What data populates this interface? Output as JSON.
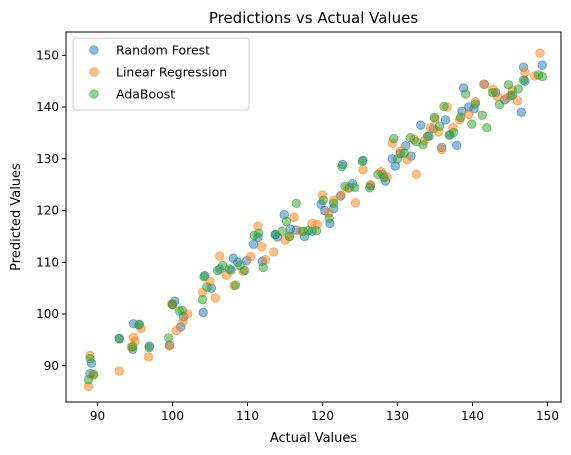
{
  "chart_data": {
    "type": "scatter",
    "title": "Predictions vs Actual Values",
    "xlabel": "Actual Values",
    "ylabel": "Predicted Values",
    "xlim": [
      85.8,
      151.8
    ],
    "ylim": [
      83.0,
      154.5
    ],
    "xticks": [
      90,
      100,
      110,
      120,
      130,
      140,
      150
    ],
    "yticks": [
      90,
      100,
      110,
      120,
      130,
      140,
      150
    ],
    "grid": false,
    "legend_position": "top-left",
    "series": [
      {
        "name": "Random Forest",
        "color": "#1f77b4",
        "points": [
          [
            89.0,
            88.5
          ],
          [
            89.2,
            90.5
          ],
          [
            92.9,
            95.3
          ],
          [
            94.7,
            93.2
          ],
          [
            94.8,
            98.1
          ],
          [
            95.6,
            98.0
          ],
          [
            96.9,
            93.8
          ],
          [
            99.6,
            94.0
          ],
          [
            100.0,
            101.9
          ],
          [
            100.3,
            102.5
          ],
          [
            101.1,
            97.5
          ],
          [
            101.5,
            99.5
          ],
          [
            104.1,
            100.3
          ],
          [
            104.3,
            107.4
          ],
          [
            105.2,
            105.0
          ],
          [
            106.3,
            108.7
          ],
          [
            107.8,
            108.5
          ],
          [
            108.1,
            110.8
          ],
          [
            108.7,
            110.0
          ],
          [
            109.9,
            110.3
          ],
          [
            110.8,
            113.5
          ],
          [
            111.4,
            114.8
          ],
          [
            112.0,
            110.2
          ],
          [
            113.7,
            115.3
          ],
          [
            114.0,
            114.9
          ],
          [
            114.9,
            119.2
          ],
          [
            115.7,
            116.4
          ],
          [
            116.5,
            116.2
          ],
          [
            117.6,
            115.0
          ],
          [
            118.6,
            116.0
          ],
          [
            119.8,
            121.2
          ],
          [
            120.3,
            120.0
          ],
          [
            121.0,
            117.5
          ],
          [
            121.5,
            120.4
          ],
          [
            122.4,
            122.8
          ],
          [
            122.7,
            128.9
          ],
          [
            123.6,
            124.4
          ],
          [
            124.0,
            125.2
          ],
          [
            125.4,
            129.7
          ],
          [
            126.4,
            124.8
          ],
          [
            128.0,
            127.0
          ],
          [
            128.4,
            125.7
          ],
          [
            129.3,
            130.0
          ],
          [
            129.7,
            128.6
          ],
          [
            130.4,
            131.0
          ],
          [
            131.1,
            132.5
          ],
          [
            131.8,
            130.5
          ],
          [
            133.1,
            136.5
          ],
          [
            134.0,
            134.3
          ],
          [
            134.8,
            135.8
          ],
          [
            135.9,
            132.2
          ],
          [
            136.4,
            137.5
          ],
          [
            137.0,
            134.6
          ],
          [
            137.9,
            132.6
          ],
          [
            138.6,
            139.2
          ],
          [
            138.8,
            143.7
          ],
          [
            139.5,
            140.0
          ],
          [
            140.2,
            139.7
          ],
          [
            141.6,
            144.4
          ],
          [
            143.1,
            142.8
          ],
          [
            144.3,
            141.4
          ],
          [
            145.1,
            142.2
          ],
          [
            146.5,
            139.0
          ],
          [
            146.8,
            147.7
          ],
          [
            147.0,
            145.0
          ],
          [
            149.3,
            148.1
          ]
        ]
      },
      {
        "name": "Linear Regression",
        "color": "#ff7f0e",
        "points": [
          [
            88.8,
            86.0
          ],
          [
            89.0,
            92.0
          ],
          [
            89.4,
            88.2
          ],
          [
            92.9,
            89.0
          ],
          [
            94.5,
            93.6
          ],
          [
            94.8,
            95.5
          ],
          [
            95.0,
            94.7
          ],
          [
            95.8,
            97.2
          ],
          [
            96.8,
            91.7
          ],
          [
            99.6,
            93.8
          ],
          [
            99.9,
            102.0
          ],
          [
            100.5,
            96.8
          ],
          [
            101.4,
            98.5
          ],
          [
            102.0,
            100.0
          ],
          [
            104.0,
            104.2
          ],
          [
            105.0,
            106.3
          ],
          [
            105.7,
            103.1
          ],
          [
            106.3,
            111.2
          ],
          [
            107.2,
            107.5
          ],
          [
            108.2,
            105.5
          ],
          [
            109.4,
            108.3
          ],
          [
            110.4,
            111.1
          ],
          [
            111.4,
            117.0
          ],
          [
            111.9,
            113.0
          ],
          [
            112.4,
            110.5
          ],
          [
            113.5,
            112.0
          ],
          [
            115.0,
            114.3
          ],
          [
            115.6,
            115.0
          ],
          [
            116.2,
            118.7
          ],
          [
            117.1,
            116.0
          ],
          [
            118.6,
            117.5
          ],
          [
            119.3,
            117.3
          ],
          [
            120.0,
            123.0
          ],
          [
            120.8,
            119.5
          ],
          [
            121.5,
            122.0
          ],
          [
            122.5,
            123.0
          ],
          [
            123.4,
            124.3
          ],
          [
            124.4,
            121.5
          ],
          [
            125.4,
            127.9
          ],
          [
            126.4,
            125.0
          ],
          [
            127.8,
            127.5
          ],
          [
            128.6,
            126.5
          ],
          [
            129.3,
            133.0
          ],
          [
            130.4,
            131.5
          ],
          [
            131.3,
            129.8
          ],
          [
            132.2,
            133.8
          ],
          [
            132.5,
            127.0
          ],
          [
            133.6,
            133.5
          ],
          [
            134.4,
            136.0
          ],
          [
            135.0,
            137.7
          ],
          [
            135.5,
            135.2
          ],
          [
            135.9,
            131.8
          ],
          [
            136.6,
            140.0
          ],
          [
            137.4,
            136.0
          ],
          [
            138.3,
            137.5
          ],
          [
            139.5,
            138.6
          ],
          [
            140.4,
            141.0
          ],
          [
            141.5,
            144.4
          ],
          [
            142.7,
            143.4
          ],
          [
            143.3,
            142.0
          ],
          [
            144.6,
            141.8
          ],
          [
            145.3,
            143.2
          ],
          [
            146.0,
            141.2
          ],
          [
            147.0,
            146.7
          ],
          [
            148.3,
            146.0
          ],
          [
            149.0,
            150.4
          ]
        ]
      },
      {
        "name": "AdaBoost",
        "color": "#2ca02c",
        "points": [
          [
            88.8,
            87.3
          ],
          [
            89.0,
            91.4
          ],
          [
            89.5,
            88.3
          ],
          [
            92.9,
            95.2
          ],
          [
            94.7,
            93.7
          ],
          [
            95.5,
            97.9
          ],
          [
            96.9,
            93.5
          ],
          [
            99.5,
            95.4
          ],
          [
            100.0,
            101.8
          ],
          [
            100.9,
            100.6
          ],
          [
            101.3,
            100.7
          ],
          [
            104.0,
            102.8
          ],
          [
            104.2,
            107.2
          ],
          [
            104.6,
            105.2
          ],
          [
            106.0,
            108.4
          ],
          [
            106.7,
            109.4
          ],
          [
            107.6,
            108.7
          ],
          [
            108.4,
            105.6
          ],
          [
            109.0,
            109.4
          ],
          [
            109.6,
            108.4
          ],
          [
            110.9,
            115.2
          ],
          [
            111.5,
            115.6
          ],
          [
            112.1,
            109.0
          ],
          [
            113.7,
            115.4
          ],
          [
            114.6,
            116.0
          ],
          [
            115.2,
            117.9
          ],
          [
            115.6,
            115.0
          ],
          [
            116.5,
            121.4
          ],
          [
            117.4,
            116.0
          ],
          [
            118.1,
            116.1
          ],
          [
            119.2,
            116.1
          ],
          [
            120.1,
            122.0
          ],
          [
            120.9,
            118.5
          ],
          [
            121.5,
            121.4
          ],
          [
            122.6,
            128.5
          ],
          [
            123.0,
            124.7
          ],
          [
            124.3,
            124.5
          ],
          [
            125.3,
            129.5
          ],
          [
            126.3,
            124.4
          ],
          [
            127.4,
            127.0
          ],
          [
            128.2,
            126.4
          ],
          [
            129.5,
            133.9
          ],
          [
            130.0,
            130.0
          ],
          [
            130.9,
            131.1
          ],
          [
            131.7,
            134.1
          ],
          [
            132.5,
            133.3
          ],
          [
            133.4,
            132.7
          ],
          [
            134.2,
            134.4
          ],
          [
            134.9,
            138.0
          ],
          [
            135.6,
            136.3
          ],
          [
            136.2,
            140.1
          ],
          [
            136.9,
            134.6
          ],
          [
            137.5,
            135.1
          ],
          [
            138.4,
            138.0
          ],
          [
            139.1,
            142.5
          ],
          [
            139.9,
            136.7
          ],
          [
            140.4,
            140.6
          ],
          [
            141.3,
            138.4
          ],
          [
            141.9,
            136.0
          ],
          [
            142.7,
            142.8
          ],
          [
            143.6,
            140.5
          ],
          [
            144.8,
            144.3
          ],
          [
            145.3,
            142.3
          ],
          [
            146.1,
            143.5
          ],
          [
            146.8,
            145.2
          ],
          [
            148.8,
            146.2
          ],
          [
            149.3,
            145.9
          ]
        ]
      }
    ]
  }
}
